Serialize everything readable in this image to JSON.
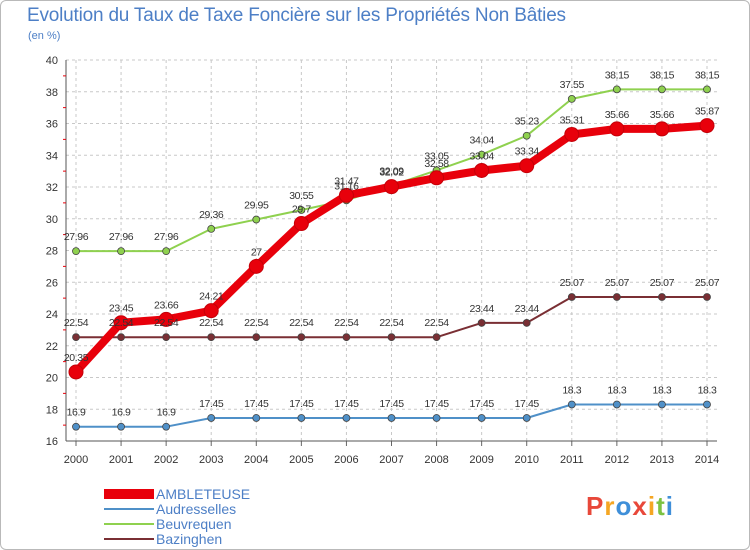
{
  "title": "Evolution du Taux de Taxe Foncière sur les Propriétés Non Bâties",
  "unit": "(en %)",
  "brand": {
    "letters": [
      "P",
      "r",
      "o",
      "x",
      "i",
      "t",
      "i"
    ],
    "colors": [
      "#e8483a",
      "#f5a623",
      "#3f8fd9",
      "#e8483a",
      "#f5a623",
      "#7cc242",
      "#3f8fd9"
    ]
  },
  "chart_data": {
    "type": "line",
    "x": [
      "2000",
      "2001",
      "2002",
      "2003",
      "2004",
      "2005",
      "2006",
      "2007",
      "2008",
      "2009",
      "2010",
      "2011",
      "2012",
      "2013",
      "2014"
    ],
    "ylim": [
      16,
      40
    ],
    "yticks": [
      "16",
      "18",
      "20",
      "22",
      "24",
      "26",
      "28",
      "30",
      "32",
      "34",
      "36",
      "38",
      "40"
    ],
    "grid": true,
    "legend_position": "bottom-left",
    "series": [
      {
        "name": "AMBLETEUSE",
        "color": "#e8000b",
        "values": [
          20.35,
          23.45,
          23.66,
          24.21,
          27,
          29.7,
          31.47,
          32.02,
          32.58,
          33.04,
          33.34,
          35.31,
          35.66,
          35.66,
          35.87
        ],
        "labels": [
          "20.35",
          "23.45",
          "23.66",
          "24.21",
          "27",
          "29.7",
          "31.47",
          "32.02",
          "32.58",
          "33.04",
          "33.34",
          "35.31",
          "35.66",
          "35.66",
          "35.87"
        ]
      },
      {
        "name": "Audresselles",
        "color": "#4f90c8",
        "values": [
          16.9,
          16.9,
          16.9,
          17.45,
          17.45,
          17.45,
          17.45,
          17.45,
          17.45,
          17.45,
          17.45,
          18.3,
          18.3,
          18.3,
          18.3
        ],
        "labels": [
          "16.9",
          "16.9",
          "16.9",
          "17.45",
          "17.45",
          "17.45",
          "17.45",
          "17.45",
          "17.45",
          "17.45",
          "17.45",
          "18.3",
          "18.3",
          "18.3",
          "18.3"
        ]
      },
      {
        "name": "Beuvrequen",
        "color": "#8fd14f",
        "values": [
          27.96,
          27.96,
          27.96,
          29.36,
          29.95,
          30.55,
          31.16,
          32.09,
          33.05,
          34.04,
          35.23,
          37.55,
          38.15,
          38.15,
          38.15
        ],
        "labels": [
          "27.96",
          "27.96",
          "27.96",
          "29.36",
          "29.95",
          "30.55",
          "31.16",
          "32.09",
          "33.05",
          "34.04",
          "35.23",
          "37.55",
          "38.15",
          "38.15",
          "38.15"
        ]
      },
      {
        "name": "Bazinghen",
        "color": "#7a2f34",
        "values": [
          22.54,
          22.54,
          22.54,
          22.54,
          22.54,
          22.54,
          22.54,
          22.54,
          22.54,
          23.44,
          23.44,
          25.07,
          25.07,
          25.07,
          25.07
        ],
        "labels": [
          "22.54",
          "22.54",
          "22.54",
          "22.54",
          "22.54",
          "22.54",
          "22.54",
          "22.54",
          "22.54",
          "23.44",
          "23.44",
          "25.07",
          "25.07",
          "25.07",
          "25.07"
        ]
      }
    ]
  }
}
